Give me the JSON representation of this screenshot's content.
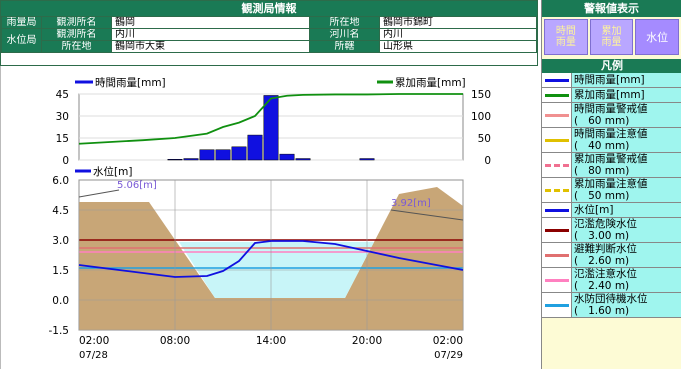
{
  "station": {
    "title": "観測局情報",
    "rows": [
      {
        "kind": "雨量局",
        "l1": "観測所名",
        "v1": "鶴岡",
        "l2": "所在地",
        "v2": "鶴岡市錦町"
      },
      {
        "kind": "水位局",
        "l1": "観測所名",
        "v1": "内川",
        "l2": "河川名",
        "v2": "内川"
      },
      {
        "kind": "",
        "l1": "所在地",
        "v1": "鶴岡市大東",
        "l2": "所轄",
        "v2": "山形県"
      }
    ]
  },
  "warning_panel": {
    "title": "警報値表示",
    "buttons": [
      {
        "label": "時間\n雨量",
        "active": false
      },
      {
        "label": "累加\n雨量",
        "active": false
      },
      {
        "label": "水位",
        "active": true
      }
    ]
  },
  "legend": {
    "title": "凡例",
    "items": [
      {
        "label": "時間雨量[mm]",
        "color": "#1010e0",
        "style": "solid",
        "lines": 1
      },
      {
        "label": "累加雨量[mm]",
        "color": "#109010",
        "style": "solid",
        "lines": 1
      },
      {
        "label": "時間雨量警戒値\n(   60 mm)",
        "color": "#f09090",
        "style": "solid",
        "lines": 2
      },
      {
        "label": "時間雨量注意値\n(   40 mm)",
        "color": "#e0c000",
        "style": "solid",
        "lines": 2
      },
      {
        "label": "累加雨量警戒値\n(   80 mm)",
        "color": "#f07090",
        "style": "dashed",
        "lines": 2
      },
      {
        "label": "累加雨量注意値\n(   50 mm)",
        "color": "#e0c000",
        "style": "dashed",
        "lines": 2
      },
      {
        "label": "水位[m]",
        "color": "#1010e0",
        "style": "solid",
        "lines": 1
      },
      {
        "label": "氾濫危険水位\n(   3.00 m)",
        "color": "#8b0000",
        "style": "solid",
        "lines": 2
      },
      {
        "label": "避難判断水位\n(   2.60 m)",
        "color": "#e07070",
        "style": "solid",
        "lines": 2
      },
      {
        "label": "氾濫注意水位\n(   2.40 m)",
        "color": "#ff80c0",
        "style": "solid",
        "lines": 2
      },
      {
        "label": "水防団待機水位\n(   1.60 m)",
        "color": "#20a0e0",
        "style": "solid",
        "lines": 2
      }
    ]
  },
  "chart_data": [
    {
      "type": "bar",
      "series": [
        {
          "name": "時間雨量[mm]",
          "axis": "left",
          "color": "#1010e0",
          "x": [
            "08:00",
            "09:00",
            "10:00",
            "11:00",
            "12:00",
            "13:00",
            "14:00",
            "15:00",
            "16:00",
            "17:00",
            "18:00",
            "19:00",
            "20:00"
          ],
          "values": [
            0.5,
            1,
            7,
            7,
            9,
            17,
            44,
            4,
            1,
            0,
            0,
            0,
            1
          ]
        },
        {
          "name": "累加雨量[mm]",
          "axis": "right",
          "color": "#109010",
          "x": [
            "02:00",
            "06:00",
            "08:00",
            "10:00",
            "11:00",
            "12:00",
            "13:00",
            "14:00",
            "15:00",
            "16:00",
            "18:00",
            "20:00",
            "22:00",
            "02:00"
          ],
          "values": [
            37,
            45,
            50,
            60,
            75,
            85,
            100,
            140,
            146,
            148,
            149,
            149,
            150,
            150
          ]
        }
      ],
      "ylim_left": [
        0,
        45
      ],
      "yticks_left": [
        0,
        15,
        30,
        45
      ],
      "ylim_right": [
        0,
        150
      ],
      "yticks_right": [
        0,
        50,
        100,
        150
      ],
      "legend_left": "時間雨量[mm]",
      "legend_right": "累加雨量[mm]"
    },
    {
      "type": "line",
      "series": [
        {
          "name": "水位[m]",
          "color": "#1010e0",
          "x": [
            "02:00",
            "05:00",
            "08:00",
            "10:00",
            "11:00",
            "12:00",
            "13:00",
            "14:00",
            "16:00",
            "18:00",
            "20:00",
            "22:00",
            "00:00",
            "02:00"
          ],
          "values": [
            1.75,
            1.45,
            1.15,
            1.2,
            1.45,
            1.95,
            2.85,
            2.95,
            2.95,
            2.8,
            2.45,
            2.1,
            1.8,
            1.5
          ]
        }
      ],
      "ylim": [
        -1.5,
        6.0
      ],
      "yticks": [
        -1.5,
        0.0,
        1.5,
        3.0,
        4.5,
        6.0
      ],
      "xticks": [
        "02:00",
        "08:00",
        "14:00",
        "20:00",
        "02:00"
      ],
      "date_left": "07/28",
      "date_right": "07/29",
      "legend": "水位[m]",
      "annotations": [
        {
          "text": "5.06[m]"
        },
        {
          "text": "3.92[m]"
        }
      ],
      "thresholds": [
        3.0,
        2.6,
        2.4,
        1.6
      ]
    }
  ]
}
